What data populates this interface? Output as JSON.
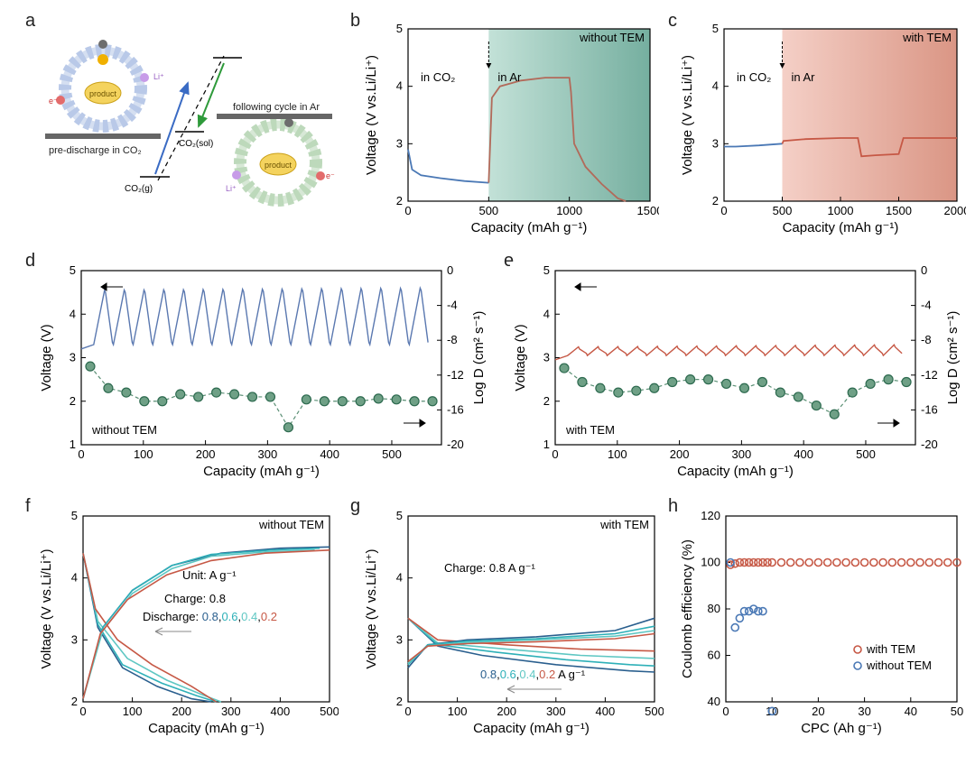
{
  "labels": {
    "a": "a",
    "b": "b",
    "c": "c",
    "d": "d",
    "e": "e",
    "f": "f",
    "g": "g",
    "h": "h"
  },
  "a": {
    "pre_discharge": "pre-discharge in CO₂",
    "following": "following cycle in Ar",
    "co2g": "CO₂(g)",
    "co2sol": "CO₂(sol)",
    "product": "product",
    "li": "Li⁺",
    "e": "e⁻",
    "colors": {
      "ring_blue": "#b9c9e8",
      "ring_green": "#bdd9bb",
      "gray": "#6d6d6d",
      "product_fill": "#f4d35e",
      "li_fill": "#c79be8",
      "e_fill": "#e36b6b",
      "arrow_blue": "#3a6bc4",
      "arrow_green": "#2e9a3a"
    }
  },
  "b": {
    "title": "without TEM",
    "in_co2": "in CO₂",
    "in_ar": "in Ar",
    "xlabel": "Capacity (mAh g⁻¹)",
    "ylabel": "Voltage (V vs.Li/Li⁺)",
    "xlim": [
      0,
      1500
    ],
    "ylim": [
      2,
      5
    ],
    "xticks": [
      0,
      500,
      1000,
      1500
    ],
    "yticks": [
      2,
      3,
      4,
      5
    ],
    "shade_start": 500,
    "shade_colors": [
      "#bcded3",
      "#66a695"
    ],
    "colors": {
      "co2": "#4a78b5",
      "ar": "#b26a5a"
    },
    "curve_co2": [
      [
        0,
        2.9
      ],
      [
        25,
        2.55
      ],
      [
        80,
        2.45
      ],
      [
        200,
        2.4
      ],
      [
        350,
        2.35
      ],
      [
        500,
        2.32
      ]
    ],
    "curve_ar": [
      [
        500,
        2.32
      ],
      [
        520,
        3.8
      ],
      [
        570,
        4.0
      ],
      [
        700,
        4.1
      ],
      [
        850,
        4.15
      ],
      [
        1000,
        4.15
      ],
      [
        1010,
        3.9
      ],
      [
        1030,
        3.0
      ],
      [
        1100,
        2.6
      ],
      [
        1200,
        2.3
      ],
      [
        1300,
        2.05
      ],
      [
        1350,
        2.0
      ]
    ]
  },
  "c": {
    "title": "with TEM",
    "in_co2": "in CO₂",
    "in_ar": "in Ar",
    "xlabel": "Capacity (mAh g⁻¹)",
    "ylabel": "Voltage (V vs.Li/Li⁺)",
    "xlim": [
      0,
      2000
    ],
    "ylim": [
      2,
      5
    ],
    "xticks": [
      0,
      500,
      1000,
      1500,
      2000
    ],
    "yticks": [
      2,
      3,
      4,
      5
    ],
    "shade_start": 500,
    "shade_colors": [
      "#f3cac0",
      "#d68a77"
    ],
    "colors": {
      "co2": "#4a78b5",
      "ar": "#c65845"
    },
    "curve_co2": [
      [
        0,
        2.95
      ],
      [
        100,
        2.95
      ],
      [
        300,
        2.97
      ],
      [
        500,
        3.0
      ]
    ],
    "curve_ar": [
      [
        500,
        3.0
      ],
      [
        510,
        3.05
      ],
      [
        700,
        3.08
      ],
      [
        1000,
        3.1
      ],
      [
        1150,
        3.1
      ],
      [
        1180,
        2.78
      ],
      [
        1300,
        2.8
      ],
      [
        1500,
        2.82
      ],
      [
        1540,
        3.1
      ],
      [
        1700,
        3.1
      ],
      [
        2000,
        3.1
      ]
    ]
  },
  "d": {
    "title": "without TEM",
    "xlabel": "Capacity (mAh g⁻¹)",
    "ylabel": "Voltage (V)",
    "y2label": "Log D (cm² s⁻¹)",
    "xlim": [
      0,
      580
    ],
    "ylim": [
      1,
      5
    ],
    "y2lim": [
      -20,
      0
    ],
    "xticks": [
      0,
      100,
      200,
      300,
      400,
      500
    ],
    "yticks": [
      1,
      2,
      3,
      4,
      5
    ],
    "y2ticks": [
      -20,
      -16,
      -12,
      -8,
      -4,
      0
    ],
    "colors": {
      "volt": "#5a78b0",
      "marker_fill": "#6fa086",
      "marker_edge": "#2d6a4f",
      "marker_line": "#5a8f74"
    },
    "n_osc": 17,
    "osc_lo": 3.2,
    "osc_hi": 4.6,
    "osc_start": 20,
    "osc_end": 560,
    "baseline_rise": [
      3.6,
      4.2,
      4.5,
      4.6,
      4.7,
      4.7
    ],
    "logD": [
      -11,
      -13.5,
      -14,
      -15,
      -15,
      -14.2,
      -14.5,
      -14,
      -14.2,
      -14.5,
      -14.5,
      -18,
      -14.8,
      -15,
      -15,
      -15,
      -14.7,
      -14.8,
      -15,
      -15
    ]
  },
  "e": {
    "title": "with TEM",
    "xlabel": "Capacity (mAh g⁻¹)",
    "ylabel": "Voltage (V)",
    "y2label": "Log D (cm² s⁻¹)",
    "xlim": [
      0,
      580
    ],
    "ylim": [
      1,
      5
    ],
    "y2lim": [
      -20,
      0
    ],
    "xticks": [
      0,
      100,
      200,
      300,
      400,
      500
    ],
    "yticks": [
      1,
      2,
      3,
      4,
      5
    ],
    "y2ticks": [
      -20,
      -16,
      -12,
      -8,
      -4,
      0
    ],
    "colors": {
      "volt": "#c65845",
      "marker_fill": "#6fa086",
      "marker_edge": "#2d6a4f",
      "marker_line": "#5a8f74"
    },
    "n_osc": 17,
    "osc_lo": 2.95,
    "osc_hi": 3.3,
    "osc_start": 20,
    "osc_end": 560,
    "logD": [
      -11.2,
      -12.8,
      -13.5,
      -14,
      -13.8,
      -13.5,
      -12.8,
      -12.5,
      -12.5,
      -13,
      -13.5,
      -12.8,
      -14,
      -14.5,
      -15.5,
      -16.5,
      -14,
      -13,
      -12.5,
      -12.8
    ]
  },
  "f": {
    "title": "without TEM",
    "unit": "Unit: A g⁻¹",
    "charge": "Charge: 0.8",
    "discharge": "Discharge:",
    "rates": [
      "0.8",
      "0.6",
      "0.4",
      "0.2"
    ],
    "rate_colors": [
      "#2a5f8e",
      "#2eb0b8",
      "#5fc7c3",
      "#c65845"
    ],
    "xlabel": "Capacity (mAh g⁻¹)",
    "ylabel": "Voltage (V vs.Li/Li⁺)",
    "xlim": [
      0,
      500
    ],
    "ylim": [
      2,
      5
    ],
    "xticks": [
      0,
      100,
      200,
      300,
      400,
      500
    ],
    "yticks": [
      2,
      3,
      4,
      5
    ],
    "curves": {
      "discharge": {
        "0.8": [
          [
            0,
            4.4
          ],
          [
            30,
            3.2
          ],
          [
            80,
            2.55
          ],
          [
            150,
            2.25
          ],
          [
            220,
            2.05
          ],
          [
            260,
            2.0
          ]
        ],
        "0.6": [
          [
            0,
            4.4
          ],
          [
            30,
            3.25
          ],
          [
            80,
            2.6
          ],
          [
            160,
            2.3
          ],
          [
            230,
            2.1
          ],
          [
            270,
            2.0
          ]
        ],
        "0.4": [
          [
            0,
            4.4
          ],
          [
            30,
            3.3
          ],
          [
            90,
            2.7
          ],
          [
            170,
            2.35
          ],
          [
            240,
            2.12
          ],
          [
            280,
            2.0
          ]
        ],
        "0.2": [
          [
            0,
            4.4
          ],
          [
            25,
            3.5
          ],
          [
            70,
            3.0
          ],
          [
            140,
            2.6
          ],
          [
            220,
            2.25
          ],
          [
            270,
            2.0
          ]
        ]
      },
      "charge": {
        "0.8": [
          [
            0,
            2.05
          ],
          [
            40,
            3.2
          ],
          [
            100,
            3.8
          ],
          [
            180,
            4.2
          ],
          [
            280,
            4.4
          ],
          [
            400,
            4.48
          ],
          [
            500,
            4.5
          ]
        ],
        "0.6": [
          [
            0,
            2.05
          ],
          [
            40,
            3.2
          ],
          [
            100,
            3.8
          ],
          [
            180,
            4.2
          ],
          [
            260,
            4.38
          ],
          [
            380,
            4.45
          ],
          [
            480,
            4.48
          ]
        ],
        "0.4": [
          [
            0,
            2.05
          ],
          [
            40,
            3.15
          ],
          [
            100,
            3.75
          ],
          [
            180,
            4.15
          ],
          [
            260,
            4.35
          ],
          [
            370,
            4.42
          ],
          [
            470,
            4.45
          ]
        ],
        "0.2": [
          [
            0,
            2.05
          ],
          [
            35,
            3.1
          ],
          [
            90,
            3.65
          ],
          [
            170,
            4.05
          ],
          [
            260,
            4.28
          ],
          [
            370,
            4.4
          ],
          [
            500,
            4.45
          ]
        ]
      }
    }
  },
  "g": {
    "title": "with TEM",
    "charge": "Charge: 0.8 A g⁻¹",
    "rates_suffix": " A g⁻¹",
    "rates": [
      "0.8",
      "0.6",
      "0.4",
      "0.2"
    ],
    "rate_colors": [
      "#2a5f8e",
      "#2eb0b8",
      "#5fc7c3",
      "#c65845"
    ],
    "xlabel": "Capacity (mAh g⁻¹)",
    "ylabel": "Voltage (V vs.Li/Li⁺)",
    "xlim": [
      0,
      500
    ],
    "ylim": [
      2,
      5
    ],
    "xticks": [
      0,
      100,
      200,
      300,
      400,
      500
    ],
    "yticks": [
      2,
      3,
      4,
      5
    ],
    "curves": {
      "discharge": {
        "0.8": [
          [
            0,
            3.35
          ],
          [
            60,
            2.9
          ],
          [
            150,
            2.75
          ],
          [
            300,
            2.6
          ],
          [
            450,
            2.5
          ],
          [
            500,
            2.48
          ]
        ],
        "0.6": [
          [
            0,
            3.35
          ],
          [
            60,
            2.92
          ],
          [
            180,
            2.8
          ],
          [
            320,
            2.68
          ],
          [
            450,
            2.6
          ],
          [
            500,
            2.58
          ]
        ],
        "0.4": [
          [
            0,
            3.35
          ],
          [
            60,
            2.95
          ],
          [
            200,
            2.85
          ],
          [
            350,
            2.75
          ],
          [
            500,
            2.7
          ]
        ],
        "0.2": [
          [
            0,
            3.35
          ],
          [
            60,
            3.0
          ],
          [
            200,
            2.92
          ],
          [
            350,
            2.85
          ],
          [
            500,
            2.82
          ]
        ]
      },
      "charge": {
        "0.8": [
          [
            0,
            2.55
          ],
          [
            40,
            2.92
          ],
          [
            120,
            3.0
          ],
          [
            260,
            3.05
          ],
          [
            420,
            3.15
          ],
          [
            500,
            3.35
          ]
        ],
        "0.6": [
          [
            0,
            2.6
          ],
          [
            40,
            2.92
          ],
          [
            120,
            2.98
          ],
          [
            260,
            3.02
          ],
          [
            420,
            3.1
          ],
          [
            500,
            3.22
          ]
        ],
        "0.4": [
          [
            0,
            2.62
          ],
          [
            40,
            2.9
          ],
          [
            120,
            2.96
          ],
          [
            260,
            3.0
          ],
          [
            420,
            3.06
          ],
          [
            500,
            3.15
          ]
        ],
        "0.2": [
          [
            0,
            2.65
          ],
          [
            40,
            2.9
          ],
          [
            120,
            2.94
          ],
          [
            260,
            2.97
          ],
          [
            420,
            3.02
          ],
          [
            500,
            3.1
          ]
        ]
      }
    }
  },
  "h": {
    "xlabel": "CPC (Ah g⁻¹)",
    "ylabel": "Coulomb efficiency (%)",
    "xlim": [
      0,
      50
    ],
    "ylim": [
      40,
      120
    ],
    "xticks": [
      0,
      10,
      20,
      30,
      40,
      50
    ],
    "yticks": [
      40,
      60,
      80,
      100,
      120
    ],
    "legend": {
      "with": "with TEM",
      "without": "without TEM"
    },
    "colors": {
      "with": "#c65845",
      "without": "#4a78b5"
    },
    "with_data": [
      [
        1,
        99
      ],
      [
        2,
        99.5
      ],
      [
        3,
        100
      ],
      [
        4,
        100
      ],
      [
        5,
        100
      ],
      [
        6,
        100
      ],
      [
        7,
        100
      ],
      [
        8,
        100
      ],
      [
        9,
        100
      ],
      [
        10,
        100
      ],
      [
        12,
        100
      ],
      [
        14,
        100
      ],
      [
        16,
        100
      ],
      [
        18,
        100
      ],
      [
        20,
        100
      ],
      [
        22,
        100
      ],
      [
        24,
        100
      ],
      [
        26,
        100
      ],
      [
        28,
        100
      ],
      [
        30,
        100
      ],
      [
        32,
        100
      ],
      [
        34,
        100
      ],
      [
        36,
        100
      ],
      [
        38,
        100
      ],
      [
        40,
        100
      ],
      [
        42,
        100
      ],
      [
        44,
        100
      ],
      [
        46,
        100
      ],
      [
        48,
        100
      ],
      [
        50,
        100
      ]
    ],
    "without_data": [
      [
        1,
        100
      ],
      [
        2,
        72
      ],
      [
        3,
        76
      ],
      [
        4,
        79
      ],
      [
        5,
        79
      ],
      [
        6,
        80
      ],
      [
        7,
        79
      ],
      [
        8,
        79
      ],
      [
        10,
        36
      ]
    ]
  }
}
